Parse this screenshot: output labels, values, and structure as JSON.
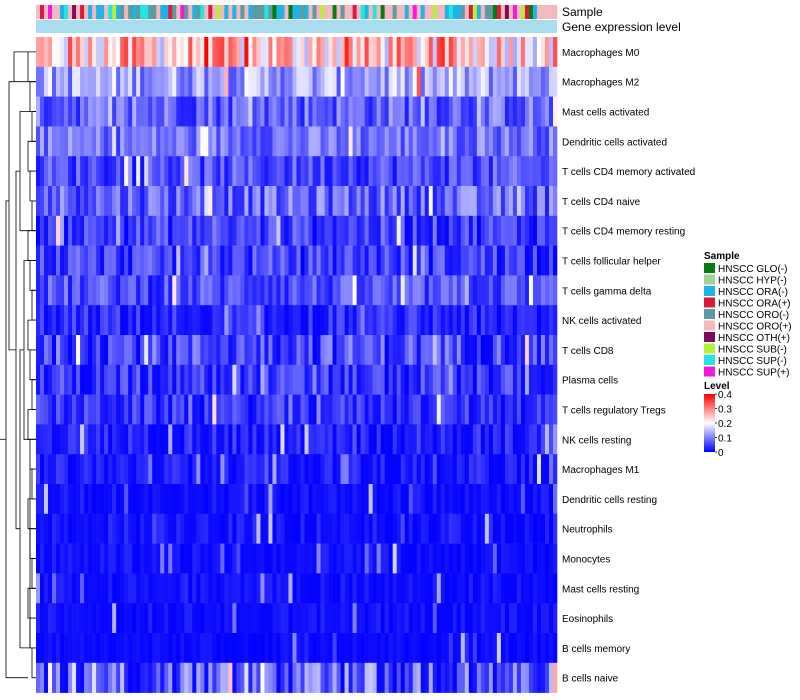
{
  "chart_data": {
    "type": "heatmap",
    "title": "",
    "annotations": [
      {
        "name": "Sample"
      },
      {
        "name": "Gene expression level"
      }
    ],
    "rows": [
      "Macrophages M0",
      "Macrophages M2",
      "Mast cells activated",
      "Dendritic cells activated",
      "T cells CD4 memory activated",
      "T cells CD4 naive",
      "T cells CD4 memory resting",
      "T cells follicular helper",
      "T cells gamma delta",
      "NK cells activated",
      "T cells CD8",
      "Plasma cells",
      "T cells regulatory  Tregs",
      "NK cells resting",
      "Macrophages M1",
      "Dendritic cells resting",
      "Neutrophils",
      "Monocytes",
      "Mast cells resting",
      "Eosinophils",
      "B cells memory",
      "B cells naive"
    ],
    "row_profiles": [
      {
        "mean": 0.24,
        "spread": 0.11
      },
      {
        "mean": 0.13,
        "spread": 0.07
      },
      {
        "mean": 0.08,
        "spread": 0.06
      },
      {
        "mean": 0.09,
        "spread": 0.05
      },
      {
        "mean": 0.06,
        "spread": 0.05
      },
      {
        "mean": 0.08,
        "spread": 0.06
      },
      {
        "mean": 0.05,
        "spread": 0.05
      },
      {
        "mean": 0.05,
        "spread": 0.05
      },
      {
        "mean": 0.06,
        "spread": 0.05
      },
      {
        "mean": 0.03,
        "spread": 0.04
      },
      {
        "mean": 0.06,
        "spread": 0.06
      },
      {
        "mean": 0.04,
        "spread": 0.05
      },
      {
        "mean": 0.04,
        "spread": 0.04
      },
      {
        "mean": 0.02,
        "spread": 0.04
      },
      {
        "mean": 0.02,
        "spread": 0.03
      },
      {
        "mean": 0.01,
        "spread": 0.02
      },
      {
        "mean": 0.01,
        "spread": 0.03
      },
      {
        "mean": 0.01,
        "spread": 0.02
      },
      {
        "mean": 0.01,
        "spread": 0.02
      },
      {
        "mean": 0.01,
        "spread": 0.02
      },
      {
        "mean": 0.005,
        "spread": 0.015
      },
      {
        "mean": 0.06,
        "spread": 0.09
      }
    ],
    "n_samples": 130,
    "sample_groups": [
      {
        "label": "HNSCC GLO(-)",
        "color": "#0a7a12"
      },
      {
        "label": "HNSCC HYP(-)",
        "color": "#9fd39a"
      },
      {
        "label": "HNSCC ORA(-)",
        "color": "#1fb3e6"
      },
      {
        "label": "HNSCC ORA(+)",
        "color": "#d81b3c"
      },
      {
        "label": "HNSCC ORO(-)",
        "color": "#5e9aa1"
      },
      {
        "label": "HNSCC ORO(+)",
        "color": "#f4b8c1"
      },
      {
        "label": "HNSCC OTH(+)",
        "color": "#7a0e5a"
      },
      {
        "label": "HNSCC SUB(-)",
        "color": "#b6f03a"
      },
      {
        "label": "HNSCC SUP(-)",
        "color": "#22e6e6"
      },
      {
        "label": "HNSCC SUP(+)",
        "color": "#f21cd6"
      }
    ],
    "sample_group_weights": [
      0.03,
      0.04,
      0.22,
      0.07,
      0.12,
      0.34,
      0.02,
      0.03,
      0.1,
      0.03
    ],
    "gene_expression_level_color": "#a8dcef",
    "legends": [
      {
        "title": "Sample",
        "type": "discrete"
      },
      {
        "title": "Level",
        "type": "continuous",
        "ticks": [
          "0.4",
          "0.3",
          "0.2",
          "0.1",
          "0"
        ],
        "range": [
          0,
          0.4
        ]
      }
    ],
    "color_scale": {
      "low": "#0000ff",
      "mid": "#ffffff",
      "high": "#ff0000",
      "min": 0,
      "max": 0.4,
      "midpoint": 0.2
    },
    "legend_position": "right"
  }
}
